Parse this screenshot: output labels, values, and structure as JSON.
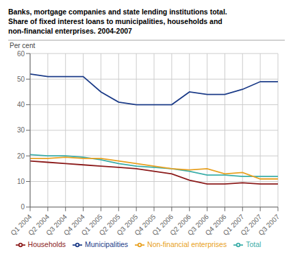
{
  "chart_data": {
    "type": "line",
    "title": "Banks, mortgage companies and state lending institutions total.\nShare of fixed interest loans to municipalities, households and\nnon-financial enterprises. 2004-2007",
    "ylabel": "Per cent",
    "categories": [
      "Q1 2004",
      "Q2 2004",
      "Q3 2004",
      "Q4 2004",
      "Q1 2005",
      "Q2 2005",
      "Q3 2005",
      "Q4 2005",
      "Q1 2006",
      "Q2 2006",
      "Q3 2006",
      "Q4 2006",
      "Q1 2007",
      "Q2 2007",
      "Q3 2007"
    ],
    "series": [
      {
        "name": "Municipalities",
        "color": "#1a3a87",
        "values": [
          52,
          51,
          51,
          51,
          45,
          41,
          40,
          40,
          40,
          45,
          44,
          44,
          46,
          49,
          49
        ]
      },
      {
        "name": "Total",
        "color": "#3aada8",
        "values": [
          20.5,
          20,
          20,
          19.5,
          18.5,
          17,
          16,
          15.5,
          15,
          14,
          12.5,
          12.5,
          12,
          12,
          12
        ]
      },
      {
        "name": "Non-financial enterprises",
        "color": "#e8a020",
        "values": [
          19,
          19,
          19.5,
          19,
          19,
          18,
          17,
          16,
          15,
          14.5,
          15,
          13,
          13.5,
          11,
          11
        ]
      },
      {
        "name": "Households",
        "color": "#8b1a1a",
        "values": [
          18,
          17.5,
          17,
          16.5,
          16,
          15.5,
          15,
          14,
          13,
          10.5,
          9,
          9,
          9.5,
          9,
          9
        ]
      }
    ],
    "ylim": [
      0,
      60
    ],
    "yticks": [
      0,
      10,
      20,
      30,
      40,
      50,
      60
    ],
    "grid": true,
    "legend": "bottom"
  }
}
